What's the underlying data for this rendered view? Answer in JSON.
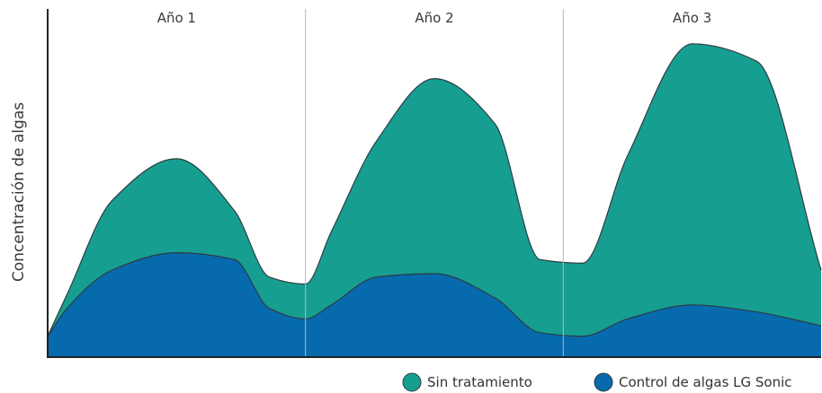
{
  "chart_data": {
    "type": "area",
    "title": "",
    "xlabel": "",
    "ylabel": "Concentración de algas",
    "grid": false,
    "legend_position": "bottom-right",
    "x": [
      0.0,
      0.15,
      0.5,
      1.0,
      1.45,
      1.72,
      2.0,
      2.2,
      2.55,
      3.0,
      3.47,
      3.82,
      4.15,
      4.5,
      5.0,
      5.5,
      6.0
    ],
    "ylim": [
      0,
      100
    ],
    "periods": [
      {
        "label": "Año 1",
        "start": 0,
        "end": 2
      },
      {
        "label": "Año 2",
        "start": 2,
        "end": 4
      },
      {
        "label": "Año 3",
        "start": 4,
        "end": 6
      }
    ],
    "series": [
      {
        "name": "Sin tratamiento",
        "color": "#169f91",
        "values": [
          6,
          18,
          45,
          57,
          42,
          23,
          21,
          36,
          62,
          80,
          67,
          28,
          27,
          58,
          90,
          85,
          25
        ]
      },
      {
        "name": "Control de algas LG Sonic",
        "color": "#066aad",
        "values": [
          6,
          14,
          25,
          30,
          28,
          14,
          11,
          15,
          23,
          24,
          17,
          7,
          6,
          11,
          15,
          13,
          9
        ]
      }
    ]
  }
}
